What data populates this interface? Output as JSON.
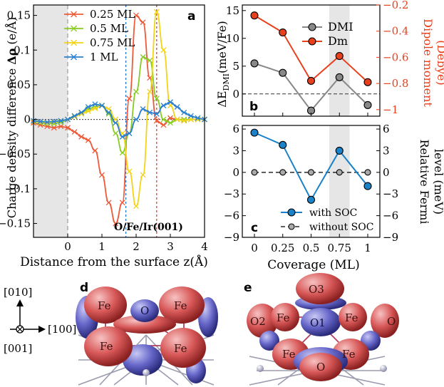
{
  "colors": {
    "ml025": "#ee5a3a",
    "ml05": "#88cc22",
    "ml075": "#f2d41a",
    "ml1": "#2a7fd0",
    "dmi": "#888888",
    "dm": "#e8401c",
    "with_soc": "#1a82c8",
    "without_soc": "#aaaaaa",
    "shade": "#e6e6e6",
    "blue_vline": "#1a70d0",
    "red_vline": "#e03020"
  },
  "chart_data": [
    {
      "panel": "a",
      "type": "line",
      "ylabel_prefix": "Charge density difference ",
      "ylabel_sym": "Δρ",
      "ylabel_unit": " (e/Å)",
      "xlabel": "Distance from the surface z(Å)",
      "annotation": "O/Fe/Ir(001)",
      "xlim": [
        -1,
        4
      ],
      "ylim": [
        -0.17,
        0.165
      ],
      "xticks": [
        0,
        1,
        2,
        3,
        4
      ],
      "yticks": [
        -0.15,
        -0.1,
        -0.05,
        0,
        0.05,
        0.1,
        0.15
      ],
      "ytick_labels": [
        "−0.15",
        "−0.1",
        "−0.05",
        "0",
        "0.05",
        "0.1",
        "0.15"
      ],
      "legend_position": "top-left",
      "vlines": [
        0,
        1.7,
        2.6
      ],
      "shaded_x": [
        -1,
        0
      ],
      "series": [
        {
          "name": "0.25 ML",
          "x": [
            -1,
            -0.8,
            -0.6,
            -0.4,
            -0.2,
            0,
            0.2,
            0.4,
            0.6,
            0.8,
            1.0,
            1.2,
            1.4,
            1.6,
            1.8,
            2.0,
            2.2,
            2.4,
            2.6,
            2.8,
            3.0,
            3.2,
            3.4,
            3.6,
            3.8,
            4.0
          ],
          "y": [
            -0.005,
            -0.008,
            -0.01,
            -0.012,
            -0.01,
            -0.012,
            -0.018,
            -0.025,
            -0.03,
            -0.045,
            -0.08,
            -0.12,
            -0.15,
            -0.12,
            0.03,
            0.15,
            0.14,
            0.06,
            -0.002,
            -0.008,
            0.002,
            0.0,
            -0.001,
            0.0,
            0.0,
            0.0
          ]
        },
        {
          "name": "0.5 ML",
          "x": [
            -1,
            -0.8,
            -0.6,
            -0.4,
            -0.2,
            0,
            0.2,
            0.4,
            0.6,
            0.8,
            1.0,
            1.2,
            1.4,
            1.6,
            1.8,
            2.0,
            2.2,
            2.4,
            2.6,
            2.8,
            3.0,
            3.2,
            3.4,
            3.6,
            3.8,
            4.0
          ],
          "y": [
            -0.003,
            -0.005,
            -0.006,
            -0.006,
            -0.004,
            0.0,
            0.005,
            0.01,
            0.015,
            0.018,
            0.02,
            0.008,
            -0.02,
            -0.048,
            -0.02,
            0.04,
            0.09,
            0.085,
            0.03,
            0.0,
            -0.005,
            0.0,
            0.0,
            0.0,
            0.0,
            0.0
          ]
        },
        {
          "name": "0.75 ML",
          "x": [
            -1,
            -0.8,
            -0.6,
            -0.4,
            -0.2,
            0,
            0.2,
            0.4,
            0.6,
            0.8,
            1.0,
            1.2,
            1.4,
            1.6,
            1.8,
            2.0,
            2.2,
            2.4,
            2.6,
            2.8,
            3.0,
            3.2,
            3.4,
            3.6,
            3.8,
            4.0
          ],
          "y": [
            -0.003,
            -0.004,
            -0.005,
            -0.004,
            -0.002,
            0.0,
            0.004,
            0.008,
            0.012,
            0.016,
            0.02,
            0.015,
            0.0,
            -0.02,
            -0.075,
            -0.125,
            -0.08,
            0.04,
            0.155,
            0.1,
            0.02,
            0.0,
            -0.002,
            0.0,
            0.0,
            0.0
          ]
        },
        {
          "name": "1 ML",
          "x": [
            -1,
            -0.8,
            -0.6,
            -0.4,
            -0.2,
            0,
            0.2,
            0.4,
            0.6,
            0.8,
            1.0,
            1.2,
            1.4,
            1.6,
            1.8,
            2.0,
            2.2,
            2.4,
            2.6,
            2.8,
            3.0,
            3.2,
            3.4,
            3.6,
            3.8,
            4.0
          ],
          "y": [
            -0.002,
            -0.003,
            -0.004,
            -0.003,
            -0.002,
            0.0,
            0.005,
            0.01,
            0.018,
            0.022,
            0.02,
            0.01,
            -0.005,
            -0.025,
            -0.02,
            0.0,
            0.015,
            0.01,
            0.008,
            0.02,
            0.025,
            0.018,
            0.01,
            0.005,
            0.002,
            0.0
          ]
        }
      ]
    },
    {
      "panel": "b",
      "type": "line",
      "ylabel_left_main": "ΔE",
      "ylabel_left_sub": "DMI",
      "ylabel_left_unit": "(meV/Fe)",
      "ylabel_right": "Dipole moment",
      "ylabel_right2": "(Debye)",
      "x": [
        0,
        0.25,
        0.5,
        0.75,
        1
      ],
      "ylim_left": [
        -4,
        16
      ],
      "yticks_left": [
        0,
        5,
        10,
        15
      ],
      "ylim_right": [
        -1.05,
        -0.2
      ],
      "yticks_right": [
        -1,
        -0.8,
        -0.6,
        -0.4,
        -0.2
      ],
      "ytick_labels_right": [
        "−1",
        "−0.8",
        "−0.6",
        "−0.4",
        "−0.2"
      ],
      "shaded_x": [
        0.66,
        0.84
      ],
      "legend_position": "top-right",
      "series": [
        {
          "name": "DMI",
          "axis": "left",
          "values": [
            5.5,
            3.8,
            -3.0,
            3.0,
            -2.0
          ]
        },
        {
          "name": "Dm",
          "axis": "right",
          "values": [
            -0.28,
            -0.41,
            -0.78,
            -0.59,
            -0.79
          ]
        }
      ]
    },
    {
      "panel": "c",
      "type": "line",
      "ylabel_right": "Relative Fermi",
      "ylabel_right2": "level (meV)",
      "xlabel": "Coverage (ML)",
      "x": [
        0,
        0.25,
        0.5,
        0.75,
        1
      ],
      "xtick_labels": [
        "0",
        "0.25",
        "0.5",
        "0.75",
        "1"
      ],
      "ylim": [
        -9,
        6.5
      ],
      "yticks": [
        -9,
        -6,
        -3,
        0,
        3,
        6
      ],
      "ytick_labels": [
        "−9",
        "−6",
        "−3",
        "0",
        "3",
        "6"
      ],
      "shaded_x": [
        0.66,
        0.84
      ],
      "legend_position": "bottom-right",
      "series": [
        {
          "name": "with SOC",
          "values": [
            5.5,
            3.8,
            -3.8,
            3.0,
            -1.9
          ]
        },
        {
          "name": "without SOC",
          "values": [
            0,
            0,
            0,
            0,
            0
          ]
        }
      ]
    }
  ],
  "panel_labels": {
    "a": "a",
    "b": "b",
    "c": "c",
    "d": "d",
    "e": "e"
  },
  "axes_inset": {
    "y_top": "[010]",
    "x_right": "[100]",
    "z_bottom": "[001]"
  },
  "structure_d": {
    "atoms": [
      "Fe",
      "O",
      "Fe",
      "Fe",
      "Fe"
    ]
  },
  "structure_e": {
    "atoms": [
      "O3",
      "O2",
      "Fe",
      "O1",
      "Fe",
      "O",
      "Fe",
      "Fe",
      "O"
    ]
  }
}
